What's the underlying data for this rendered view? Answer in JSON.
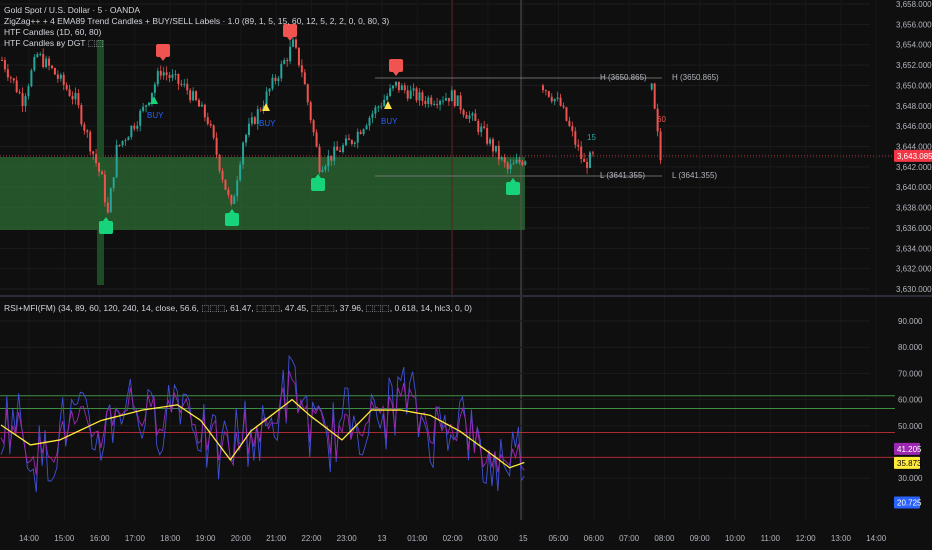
{
  "header": {
    "symbol_title": "Gold Spot / U.S. Dollar · 5 · OANDA",
    "indicators": [
      "ZigZag++ + 4 EMA89 Trend Candles + BUY/SELL Labels · 1.0 (89, 1, 5, 15, 60, 12, 5, 2, 2, 0, 0, 80, 3)",
      "HTF Candles (1D, 60, 80)",
      "HTF Candles вy DGT ⬚⬚"
    ]
  },
  "oscillator": {
    "legend": "RSI+MFI(FM) (34, 89, 60, 120, 240, 14, close, 56.6, ⬚⬚⬚, 61.47, ⬚⬚⬚, 47.45, ⬚⬚⬚, 37.96, ⬚⬚⬚, 0.618, 14, hlc3, 0, 0)",
    "axis_ticks": [
      "90.000",
      "80.000",
      "70.000",
      "60.000",
      "50.000",
      "30.000"
    ],
    "levels": [
      {
        "value": 61.47,
        "color": "#4caf50"
      },
      {
        "value": 56.6,
        "color": "#4caf50"
      },
      {
        "value": 47.45,
        "color": "#f23645"
      },
      {
        "value": 37.96,
        "color": "#f23645"
      }
    ],
    "value_tags": [
      {
        "value": "41.205",
        "numeric": 41.205,
        "color": "#9c27b0"
      },
      {
        "value": "35.873",
        "numeric": 35.873,
        "color": "#ffeb3b"
      },
      {
        "value": "20.725",
        "numeric": 20.725,
        "color": "#2962ff"
      }
    ]
  },
  "price_axis": {
    "ticks": [
      "3,658.000",
      "3,656.000",
      "3,654.000",
      "3,652.000",
      "3,650.000",
      "3,648.000",
      "3,646.000",
      "3,644.000",
      "3,642.000",
      "3,640.000",
      "3,638.000",
      "3,636.000",
      "3,634.000",
      "3,632.000",
      "3,630.000"
    ],
    "last_price": "3,643.085",
    "last_price_color": "#f23645"
  },
  "time_axis": [
    "14:00",
    "15:00",
    "16:00",
    "17:00",
    "18:00",
    "19:00",
    "20:00",
    "21:00",
    "22:00",
    "23:00",
    "13",
    "01:00",
    "02:00",
    "03:00",
    "15",
    "05:00",
    "06:00",
    "07:00",
    "08:00",
    "09:00",
    "10:00",
    "11:00",
    "12:00",
    "13:00",
    "14:00"
  ],
  "annotations": {
    "high_labels": [
      "H (3650.865)",
      "H (3650.865)"
    ],
    "low_labels": [
      "L (3641.355)",
      "L (3641.355)"
    ],
    "tf_labels": [
      "15",
      "60"
    ],
    "buy_labels": [
      "BUY",
      "BUY",
      "BUY"
    ]
  },
  "chart_data": {
    "type": "candlestick",
    "ylim": [
      3630,
      3658
    ],
    "price_path": [
      [
        0,
        3652.5
      ],
      [
        7,
        3648.6
      ],
      [
        12,
        3653
      ],
      [
        17,
        3651.5
      ],
      [
        25,
        3648.6
      ],
      [
        34,
        3640.7
      ],
      [
        36,
        3637.3
      ],
      [
        39,
        3643.7
      ],
      [
        48,
        3647.6
      ],
      [
        54,
        3651.5
      ],
      [
        63,
        3649.6
      ],
      [
        70,
        3646.6
      ],
      [
        78,
        3637.8
      ],
      [
        82,
        3644.6
      ],
      [
        90,
        3649
      ],
      [
        99,
        3654
      ],
      [
        102,
        3651.5
      ],
      [
        108,
        3642.2
      ],
      [
        119,
        3644.6
      ],
      [
        124,
        3646.6
      ],
      [
        134,
        3650
      ],
      [
        143,
        3648.6
      ],
      [
        153,
        3649
      ],
      [
        163,
        3645.6
      ],
      [
        172,
        3641.7
      ],
      [
        178,
        3642.9
      ]
    ],
    "price_path_2": [
      [
        184,
        3650
      ],
      [
        190,
        3648
      ],
      [
        198,
        3642.2
      ],
      [
        201,
        3643
      ]
    ],
    "price_path_3": [
      [
        221,
        3649.6
      ],
      [
        224,
        3642.7
      ]
    ],
    "demand_zone": [
      3635.8,
      3643.0
    ],
    "rsi_signal": [
      [
        0,
        50.3
      ],
      [
        10,
        42.7
      ],
      [
        20,
        44.6
      ],
      [
        34,
        52
      ],
      [
        48,
        56
      ],
      [
        60,
        58
      ],
      [
        68,
        52
      ],
      [
        78,
        37
      ],
      [
        85,
        48
      ],
      [
        99,
        60
      ],
      [
        105,
        54
      ],
      [
        116,
        44.6
      ],
      [
        126,
        56
      ],
      [
        136,
        56
      ],
      [
        146,
        54
      ],
      [
        156,
        48
      ],
      [
        167,
        39
      ],
      [
        173,
        34
      ],
      [
        178,
        36
      ]
    ]
  }
}
